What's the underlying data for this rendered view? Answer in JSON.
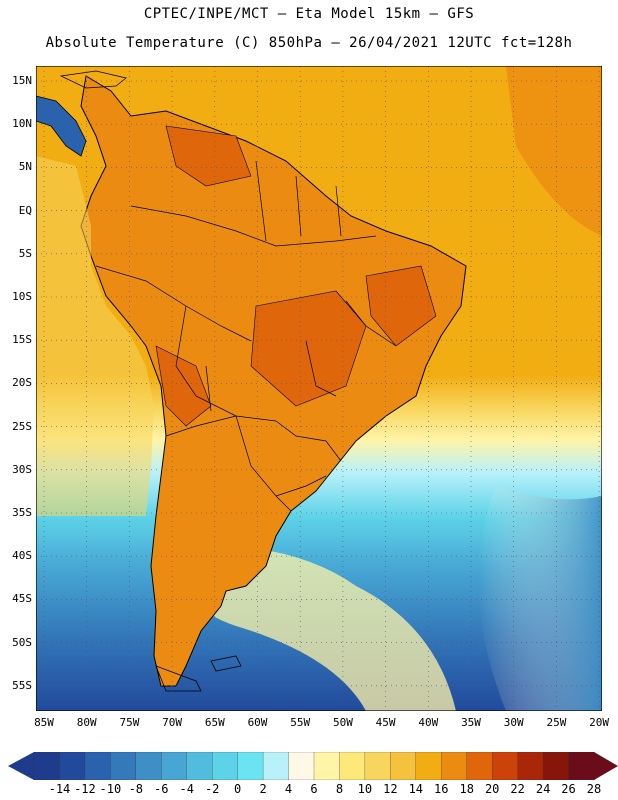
{
  "header": {
    "line1": "CPTEC/INPE/MCT —  Eta Model 15km — GFS",
    "line2": "Absolute Temperature (C) 850hPa — 26/04/2021 12UTC fct=128h"
  },
  "axes": {
    "lat_labels": [
      "15N",
      "10N",
      "5N",
      "EQ",
      "5S",
      "10S",
      "15S",
      "20S",
      "25S",
      "30S",
      "35S",
      "40S",
      "45S",
      "50S",
      "55S"
    ],
    "lon_labels": [
      "85W",
      "80W",
      "75W",
      "70W",
      "65W",
      "60W",
      "55W",
      "50W",
      "45W",
      "40W",
      "35W",
      "30W",
      "25W",
      "20W"
    ]
  },
  "colorbar": {
    "labels": [
      "-14",
      "-12",
      "-10",
      "-8",
      "-6",
      "-4",
      "-2",
      "0",
      "2",
      "4",
      "6",
      "8",
      "10",
      "12",
      "14",
      "16",
      "18",
      "20",
      "22",
      "24",
      "26",
      "28"
    ],
    "colors": [
      "#1e3b8c",
      "#224a9c",
      "#2a62ae",
      "#3479ba",
      "#3e8fc6",
      "#47a6d4",
      "#52bcde",
      "#5dd2e8",
      "#6ae4f2",
      "#b8f1fa",
      "#fff8e6",
      "#fff4a8",
      "#fde87a",
      "#f8d55c",
      "#f4c23c",
      "#f2ad12",
      "#eb8b12",
      "#e0660c",
      "#cc420a",
      "#aa2608",
      "#88150a",
      "#6b0c1a"
    ]
  },
  "map": {
    "ocean_warm": "#f2ad12",
    "land_hot": "#e0660c",
    "cold": "#2a62ae"
  }
}
